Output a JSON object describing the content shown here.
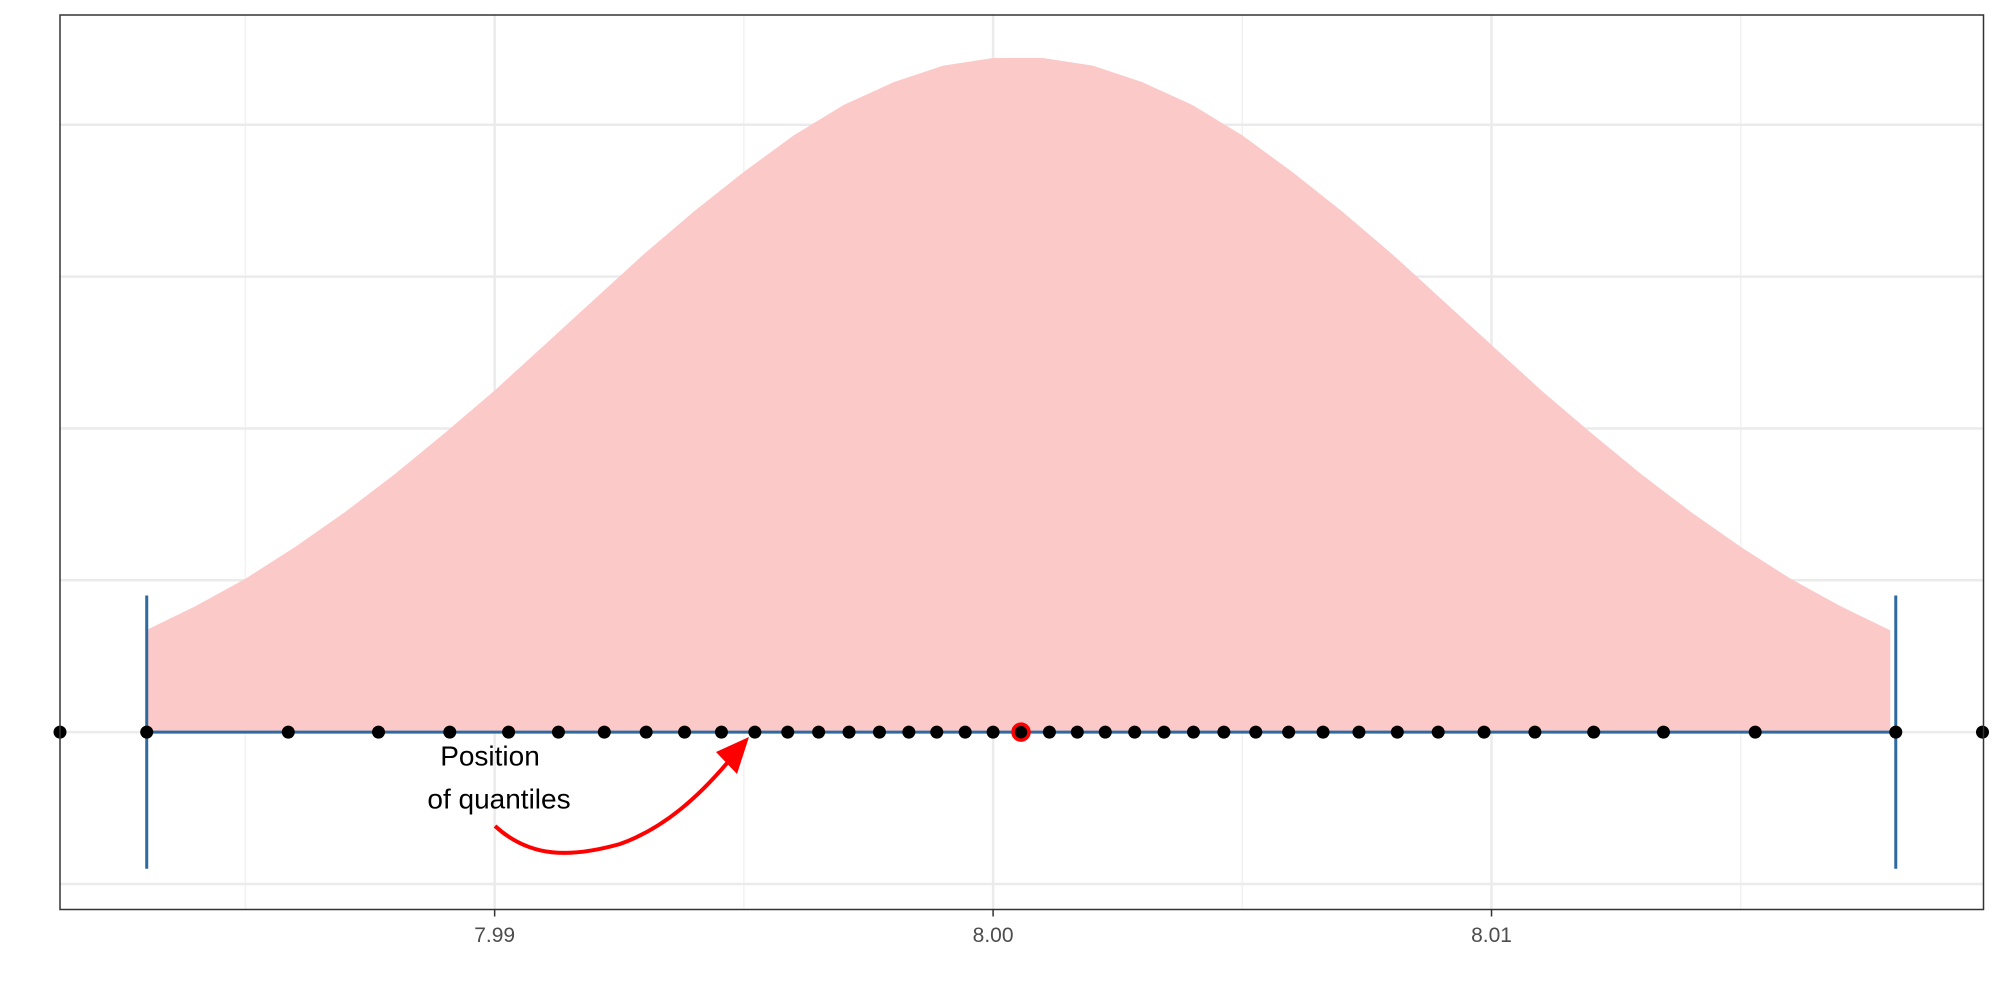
{
  "chart_data": {
    "type": "density",
    "xlim": [
      7.98128,
      8.01987
    ],
    "ylim": [
      -1.168,
      4.723
    ],
    "xticks": [
      7.99,
      8.0,
      8.01
    ],
    "xticks_labels": [
      "7.99",
      "8.00",
      "8.01"
    ],
    "xminor": [
      7.985,
      7.995,
      8.005,
      8.015
    ],
    "yticks": [
      -1,
      0,
      1,
      2,
      3,
      4
    ],
    "grid": true,
    "density": {
      "color": "#fcc9c9",
      "x": [
        7.983,
        7.984,
        7.985,
        7.986,
        7.987,
        7.988,
        7.989,
        7.99,
        7.991,
        7.992,
        7.993,
        7.994,
        7.995,
        7.996,
        7.997,
        7.998,
        7.999,
        8.0,
        8.001,
        8.002,
        8.003,
        8.004,
        8.005,
        8.006,
        8.007,
        8.008,
        8.009,
        8.01,
        8.011,
        8.012,
        8.013,
        8.014,
        8.015,
        8.016,
        8.017,
        8.018
      ],
      "values": [
        0.67,
        0.83,
        1.01,
        1.22,
        1.45,
        1.7,
        1.97,
        2.25,
        2.55,
        2.85,
        3.15,
        3.43,
        3.69,
        3.93,
        4.13,
        4.28,
        4.39,
        4.44,
        4.44,
        4.39,
        4.28,
        4.13,
        3.93,
        3.69,
        3.43,
        3.15,
        2.85,
        2.55,
        2.25,
        1.97,
        1.7,
        1.45,
        1.22,
        1.01,
        0.83,
        0.67
      ]
    },
    "interval": {
      "color": "#2c6aa0",
      "lower": 7.98302,
      "upper": 8.01811,
      "ymin": -0.9,
      "ymax": 0.9,
      "y": 0
    },
    "quantiles": {
      "color": "#000000",
      "x": [
        7.98128,
        7.98302,
        7.98586,
        7.98767,
        7.9891,
        7.99028,
        7.99128,
        7.9922,
        7.99304,
        7.99381,
        7.99455,
        7.99522,
        7.99588,
        7.9965,
        7.99711,
        7.99772,
        7.99831,
        7.99887,
        7.99944,
        8.0,
        8.00113,
        8.00169,
        8.00225,
        8.00284,
        8.00343,
        8.00402,
        8.00463,
        8.00527,
        8.00593,
        8.00662,
        8.00734,
        8.00811,
        8.00893,
        8.00985,
        8.01087,
        8.01205,
        8.01345,
        8.01529,
        8.01811,
        8.01985
      ],
      "values": [
        0,
        0,
        0,
        0,
        0,
        0,
        0,
        0,
        0,
        0,
        0,
        0,
        0,
        0,
        0,
        0,
        0,
        0,
        0,
        0,
        0,
        0,
        0,
        0,
        0,
        0,
        0,
        0,
        0,
        0,
        0,
        0,
        0,
        0,
        0,
        0,
        0,
        0,
        0,
        0
      ]
    },
    "highlight": {
      "color": "#ff0000",
      "x": [
        8.00056
      ],
      "values": [
        0
      ]
    },
    "annotation": {
      "lines": [
        "Position",
        "of quantiles"
      ],
      "color": "#ff0000"
    }
  }
}
